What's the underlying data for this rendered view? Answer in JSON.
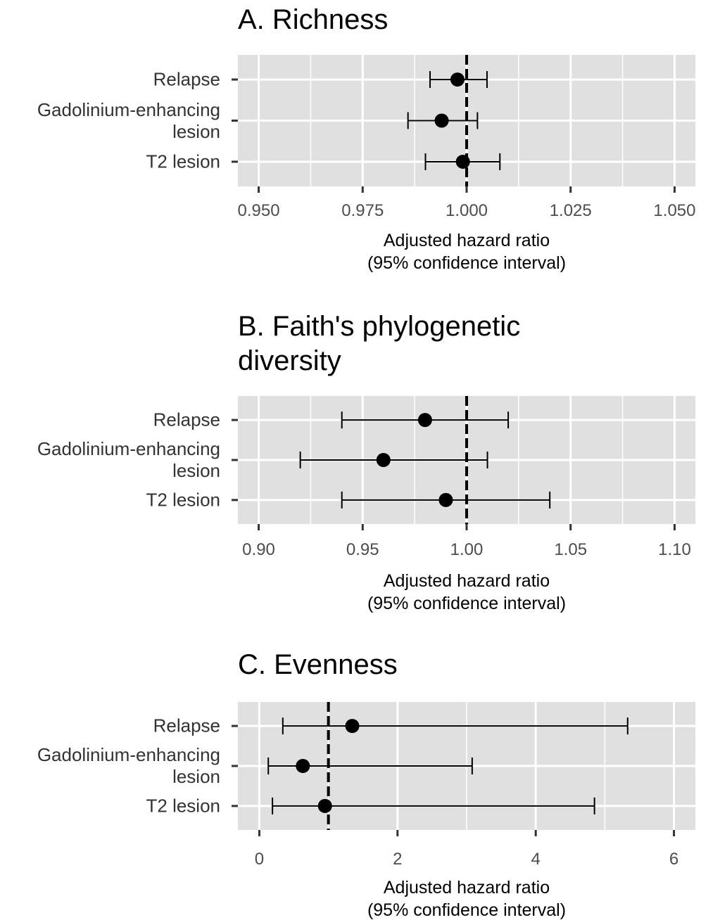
{
  "chart_data": [
    {
      "type": "forest",
      "title": "A. Richness",
      "categories": [
        "Relapse",
        "Gadolinium-enhancing\nlesion",
        "T2 lesion"
      ],
      "values": [
        0.9978,
        0.994,
        0.9991
      ],
      "lower": [
        0.9912,
        0.9859,
        0.9901
      ],
      "upper": [
        1.0049,
        1.0026,
        1.008
      ],
      "color": "#000000",
      "xlim": [
        0.945,
        1.055
      ],
      "xticks": [
        {
          "value": 0.95,
          "label": "0.950"
        },
        0.975,
        {
          "value": 1,
          "label": "1.000"
        },
        1.025,
        {
          "value": 1.05,
          "label": "1.050"
        }
      ],
      "reference_line": 1,
      "grid": true,
      "xlabel": "Adjusted hazard ratio\n(95% confidence interval)"
    },
    {
      "type": "forest",
      "title": "B. Faith's phylogenetic\ndiversity",
      "categories": [
        "Relapse",
        "Gadolinium-enhancing\nlesion",
        "T2 lesion"
      ],
      "values": [
        0.98,
        0.96,
        0.99
      ],
      "lower": [
        0.94,
        0.92,
        0.94
      ],
      "upper": [
        1.02,
        1.01,
        1.04
      ],
      "color": "#000000",
      "xlim": [
        0.89,
        1.11
      ],
      "xticks": [
        {
          "value": 0.9,
          "label": "0.90"
        },
        0.95,
        {
          "value": 1,
          "label": "1.00"
        },
        1.05,
        {
          "value": 1.1,
          "label": "1.10"
        }
      ],
      "reference_line": 1,
      "grid": true,
      "xlabel": "Adjusted hazard ratio\n(95% confidence interval)"
    },
    {
      "type": "forest",
      "title": "C. Evenness",
      "categories": [
        "Relapse",
        "Gadolinium-enhancing\nlesion",
        "T2 lesion"
      ],
      "values": [
        1.345,
        0.63,
        0.95
      ],
      "lower": [
        0.34,
        0.13,
        0.19
      ],
      "upper": [
        5.33,
        3.08,
        4.85
      ],
      "color": "#000000",
      "xlim": [
        -0.31,
        6.31
      ],
      "xticks": [
        0,
        2,
        4,
        6
      ],
      "reference_line": 1,
      "grid": true,
      "xlabel": "Adjusted hazard ratio\n(95% confidence interval)"
    }
  ]
}
